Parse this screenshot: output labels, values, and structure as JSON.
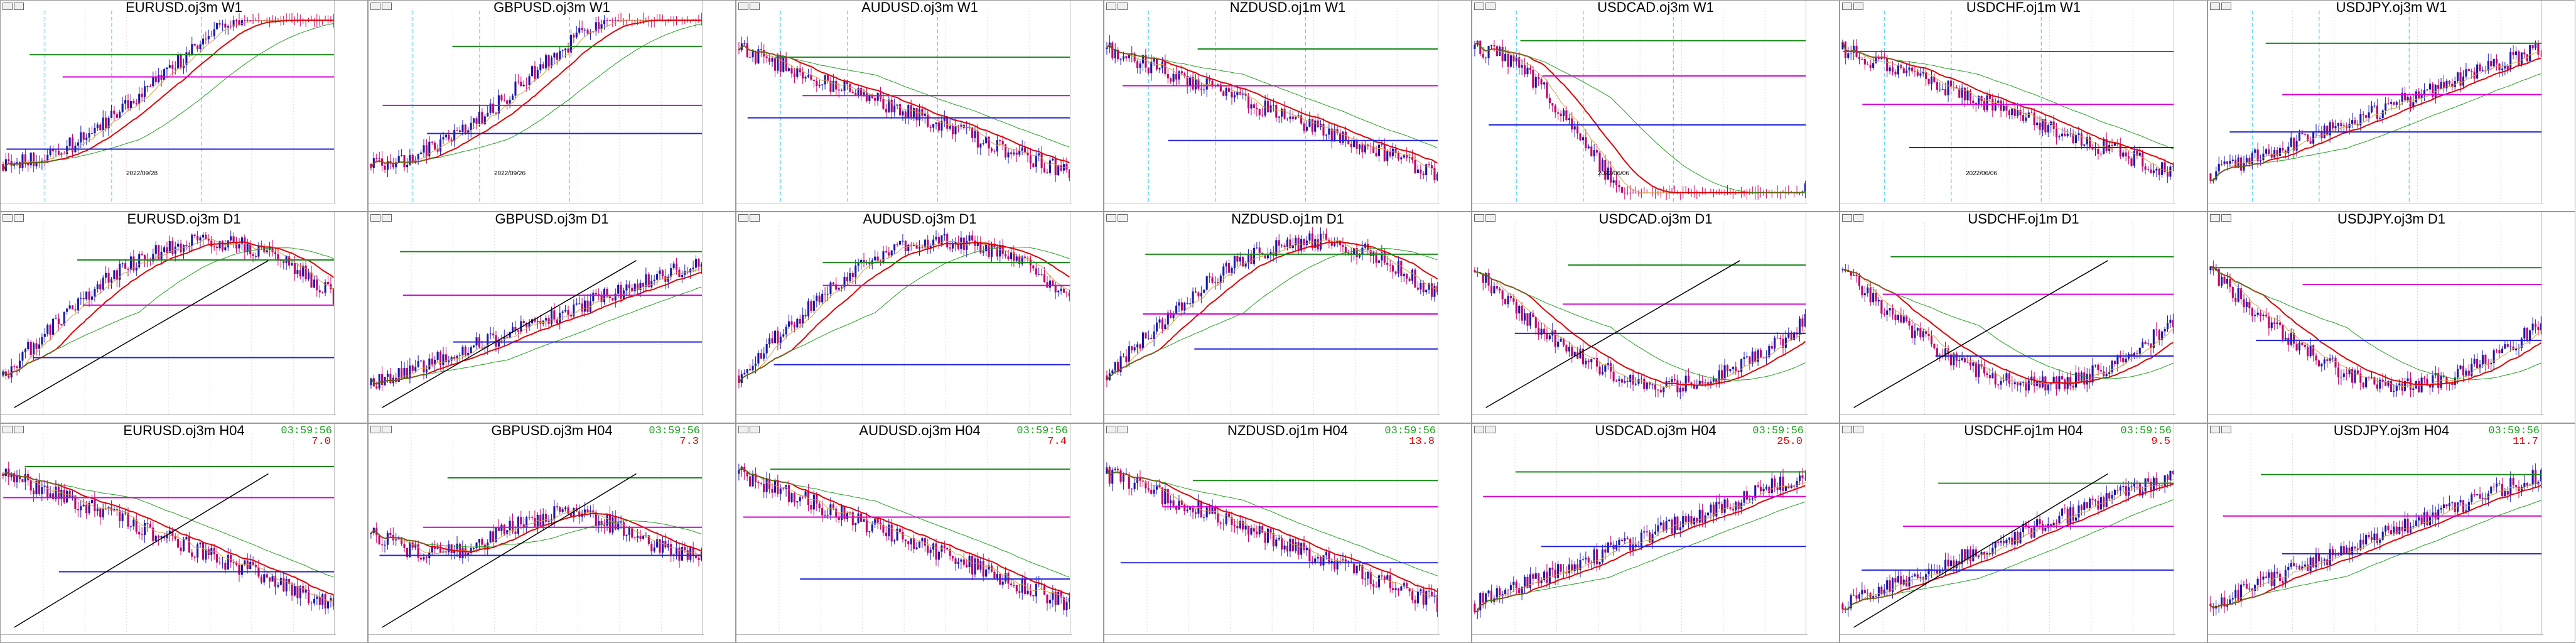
{
  "panels": [
    {
      "id": "p1",
      "title": "EURUSD.oj3m W1",
      "seed": 11,
      "trend": "downup",
      "annotation": "2022/09/28"
    },
    {
      "id": "p2",
      "title": "GBPUSD.oj3m W1",
      "seed": 12,
      "trend": "downup",
      "annotation": "2022/09/26"
    },
    {
      "id": "p3",
      "title": "AUDUSD.oj3m W1",
      "seed": 13,
      "trend": "down",
      "annotation": ""
    },
    {
      "id": "p4",
      "title": "NZDUSD.oj1m W1",
      "seed": 14,
      "trend": "down",
      "annotation": ""
    },
    {
      "id": "p5",
      "title": "USDCAD.oj3m W1",
      "seed": 15,
      "trend": "updown",
      "annotation": "2022/06/06"
    },
    {
      "id": "p6",
      "title": "USDCHF.oj1m W1",
      "seed": 16,
      "trend": "down",
      "annotation": "2022/06/06"
    },
    {
      "id": "p7",
      "title": "USDJPY.oj3m W1",
      "seed": 17,
      "trend": "up",
      "annotation": ""
    },
    {
      "id": "p8",
      "title": "EURUSD.oj3m D1",
      "seed": 21,
      "trend": "upmid",
      "annotation": ""
    },
    {
      "id": "p9",
      "title": "GBPUSD.oj3m D1",
      "seed": 22,
      "trend": "up",
      "annotation": ""
    },
    {
      "id": "p10",
      "title": "AUDUSD.oj3m D1",
      "seed": 23,
      "trend": "upmid",
      "annotation": ""
    },
    {
      "id": "p11",
      "title": "NZDUSD.oj1m D1",
      "seed": 24,
      "trend": "upmid",
      "annotation": ""
    },
    {
      "id": "p12",
      "title": "USDCAD.oj3m D1",
      "seed": 25,
      "trend": "downmid",
      "annotation": ""
    },
    {
      "id": "p13",
      "title": "USDCHF.oj1m D1",
      "seed": 26,
      "trend": "downmid",
      "annotation": ""
    },
    {
      "id": "p14",
      "title": "USDJPY.oj3m D1",
      "seed": 27,
      "trend": "downmid",
      "annotation": ""
    },
    {
      "id": "p15",
      "title": "EURUSD.oj3m H04",
      "seed": 31,
      "trend": "down",
      "countdown": "03:59:56",
      "spread": "7.0"
    },
    {
      "id": "p16",
      "title": "GBPUSD.oj3m H04",
      "seed": 32,
      "trend": "flat",
      "countdown": "03:59:56",
      "spread": "7.3"
    },
    {
      "id": "p17",
      "title": "AUDUSD.oj3m H04",
      "seed": 33,
      "trend": "down",
      "countdown": "03:59:56",
      "spread": "7.4"
    },
    {
      "id": "p18",
      "title": "NZDUSD.oj1m H04",
      "seed": 34,
      "trend": "down",
      "countdown": "03:59:56",
      "spread": "13.8"
    },
    {
      "id": "p19",
      "title": "USDCAD.oj3m H04",
      "seed": 35,
      "trend": "up",
      "countdown": "03:59:56",
      "spread": "25.0"
    },
    {
      "id": "p20",
      "title": "USDCHF.oj1m H04",
      "seed": 36,
      "trend": "up",
      "countdown": "03:59:56",
      "spread": "9.5"
    },
    {
      "id": "p21",
      "title": "USDJPY.oj3m H04",
      "seed": 37,
      "trend": "up",
      "countdown": "03:59:56",
      "spread": "11.7"
    }
  ],
  "colors": {
    "bull": "#1a1aa8",
    "bear": "#c0006a",
    "ma_red": "#e00000",
    "ma_green": "#22a022",
    "ma_orange": "#d9a040",
    "hline_magenta": "#d400d4",
    "hline_blue": "#2222dd",
    "hline_green": "#1a8a1a",
    "grid": "#d8d8d8",
    "vline_cyan": "#33c7e8"
  }
}
